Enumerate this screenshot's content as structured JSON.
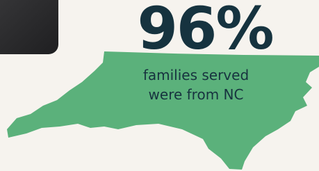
{
  "stat": {
    "value": "96%",
    "caption": [
      "families served",
      "were from NC"
    ]
  }
}
